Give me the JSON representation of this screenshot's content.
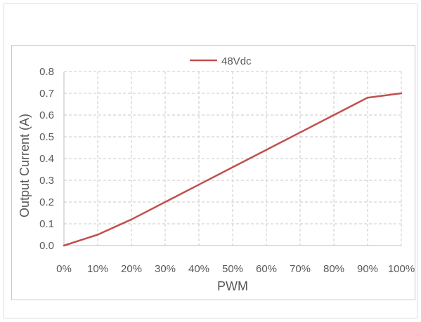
{
  "chart_data": {
    "type": "line",
    "title": "",
    "xlabel": "PWM",
    "ylabel": "Output Current (A)",
    "x": [
      0,
      10,
      20,
      30,
      40,
      50,
      60,
      70,
      80,
      90,
      100
    ],
    "x_tick_labels": [
      "0%",
      "10%",
      "20%",
      "30%",
      "40%",
      "50%",
      "60%",
      "70%",
      "80%",
      "90%",
      "100%"
    ],
    "y_tick_labels": [
      "0.0",
      "0.1",
      "0.2",
      "0.3",
      "0.4",
      "0.5",
      "0.6",
      "0.7",
      "0.8"
    ],
    "xlim": [
      0,
      100
    ],
    "ylim": [
      0,
      0.8
    ],
    "y_ticks": [
      0,
      0.1,
      0.2,
      0.3,
      0.4,
      0.5,
      0.6,
      0.7,
      0.8
    ],
    "grid": true,
    "legend_position": "top-center",
    "series": [
      {
        "name": "48Vdc",
        "color": "#c0504d",
        "values": [
          0.0,
          0.05,
          0.12,
          0.2,
          0.28,
          0.36,
          0.44,
          0.52,
          0.6,
          0.68,
          0.7
        ]
      }
    ]
  }
}
